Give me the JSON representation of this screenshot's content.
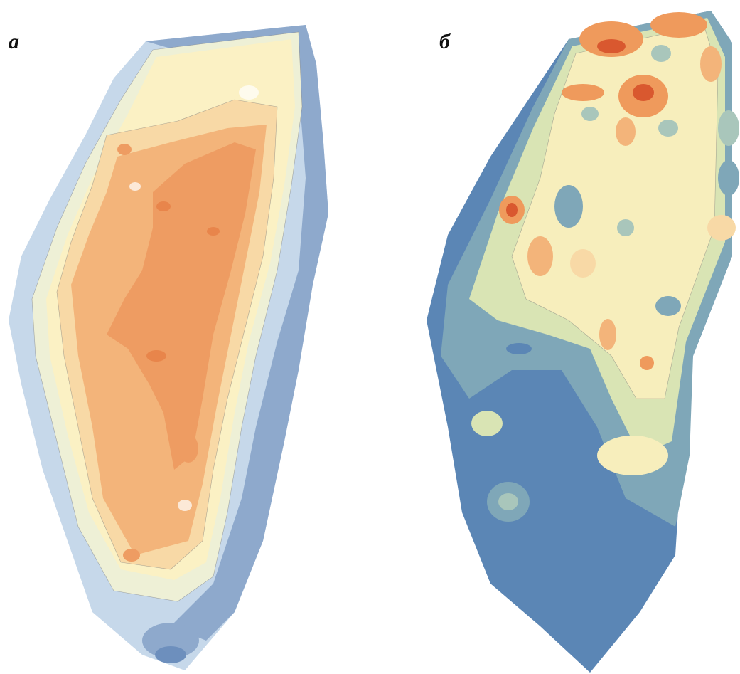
{
  "panels": [
    {
      "label": "а"
    },
    {
      "label": "б"
    }
  ]
}
